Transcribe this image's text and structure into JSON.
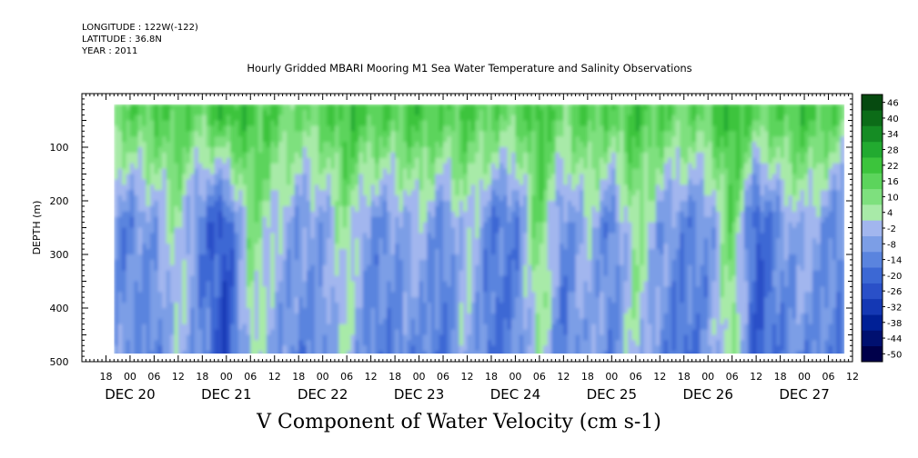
{
  "header": {
    "longitude": "LONGITUDE : 122W(-122)",
    "latitude": "LATITUDE : 36.8N",
    "year": "YEAR : 2011",
    "title": "Hourly Gridded MBARI Mooring M1 Sea Water Temperature and Salinity Observations"
  },
  "caption": "V Component of Water Velocity (cm s-1)",
  "chart_data": {
    "type": "heatmap",
    "title": "Hourly Gridded MBARI Mooring M1 Sea Water Temperature and Salinity Observations",
    "variable": "V Component of Water Velocity (cm s-1)",
    "xlabel": "",
    "ylabel": "DEPTH (m)",
    "x_range_hours": [
      -12,
      180
    ],
    "x_start_label": "DEC 20 00",
    "data_x_range_hours": [
      -4,
      178
    ],
    "y_range": [
      500,
      0
    ],
    "data_y_range": [
      20,
      485
    ],
    "y_ticks": [
      100,
      200,
      300,
      400,
      500
    ],
    "x_tick_labels": [
      "18",
      "00",
      "06",
      "12",
      "18",
      "00",
      "06",
      "12",
      "18",
      "00",
      "06",
      "12",
      "18",
      "00",
      "06",
      "12",
      "18",
      "00",
      "06",
      "12",
      "18",
      "00",
      "06",
      "12",
      "18",
      "00",
      "06",
      "12",
      "18",
      "00",
      "06",
      "12"
    ],
    "x_tick_hours": [
      -6,
      0,
      6,
      12,
      18,
      24,
      30,
      36,
      42,
      48,
      54,
      60,
      66,
      72,
      78,
      84,
      90,
      96,
      102,
      108,
      114,
      120,
      126,
      132,
      138,
      144,
      150,
      156,
      162,
      168,
      174,
      180
    ],
    "date_labels": [
      {
        "label": "DEC 20",
        "hour": 0
      },
      {
        "label": "DEC 21",
        "hour": 24
      },
      {
        "label": "DEC 22",
        "hour": 48
      },
      {
        "label": "DEC 23",
        "hour": 72
      },
      {
        "label": "DEC 24",
        "hour": 96
      },
      {
        "label": "DEC 25",
        "hour": 120
      },
      {
        "label": "DEC 26",
        "hour": 144
      },
      {
        "label": "DEC 27",
        "hour": 168
      }
    ],
    "colorbar": {
      "levels": [
        -50,
        -44,
        -38,
        -32,
        -26,
        -20,
        -14,
        -8,
        -2,
        4,
        10,
        16,
        22,
        28,
        34,
        40,
        46
      ],
      "labels": [
        "46",
        "40",
        "34",
        "28",
        "22",
        "16",
        "10",
        "4",
        "-2",
        "-8",
        "-14",
        "-20",
        "-26",
        "-32",
        "-38",
        "-44",
        "-50"
      ],
      "colors": [
        "#00004a",
        "#001070",
        "#002096",
        "#1438b4",
        "#2a50c8",
        "#3c68d4",
        "#5a84de",
        "#7c9ee6",
        "#a2b6ee",
        "#a8eaa8",
        "#7ee07e",
        "#5cd45c",
        "#3cc43c",
        "#22aa30",
        "#158c24",
        "#0c6c18",
        "#064a10"
      ]
    },
    "velocity_profile_by_hour": [
      {
        "hour": 0,
        "v_upper": 18,
        "v_mid": -10,
        "v_deep": -6
      },
      {
        "hour": 6,
        "v_upper": 20,
        "v_mid": -4,
        "v_deep": -12
      },
      {
        "hour": 12,
        "v_upper": 22,
        "v_mid": 8,
        "v_deep": 2
      },
      {
        "hour": 18,
        "v_upper": 16,
        "v_mid": -14,
        "v_deep": -8
      },
      {
        "hour": 24,
        "v_upper": 28,
        "v_mid": -22,
        "v_deep": -26
      },
      {
        "hour": 30,
        "v_upper": 24,
        "v_mid": 14,
        "v_deep": 6
      },
      {
        "hour": 36,
        "v_upper": 20,
        "v_mid": 4,
        "v_deep": -4
      },
      {
        "hour": 42,
        "v_upper": 14,
        "v_mid": -6,
        "v_deep": -10
      },
      {
        "hour": 48,
        "v_upper": 18,
        "v_mid": -4,
        "v_deep": -8
      },
      {
        "hour": 54,
        "v_upper": 26,
        "v_mid": 10,
        "v_deep": 4
      },
      {
        "hour": 60,
        "v_upper": 22,
        "v_mid": -8,
        "v_deep": -12
      },
      {
        "hour": 66,
        "v_upper": 20,
        "v_mid": -6,
        "v_deep": -10
      },
      {
        "hour": 72,
        "v_upper": 24,
        "v_mid": 2,
        "v_deep": -8
      },
      {
        "hour": 78,
        "v_upper": 20,
        "v_mid": -10,
        "v_deep": -14
      },
      {
        "hour": 84,
        "v_upper": 22,
        "v_mid": 6,
        "v_deep": 2
      },
      {
        "hour": 90,
        "v_upper": 18,
        "v_mid": -12,
        "v_deep": -16
      },
      {
        "hour": 96,
        "v_upper": 16,
        "v_mid": -14,
        "v_deep": -10
      },
      {
        "hour": 102,
        "v_upper": 26,
        "v_mid": 18,
        "v_deep": 8
      },
      {
        "hour": 108,
        "v_upper": 14,
        "v_mid": -10,
        "v_deep": -14
      },
      {
        "hour": 114,
        "v_upper": 22,
        "v_mid": 2,
        "v_deep": -2
      },
      {
        "hour": 120,
        "v_upper": 18,
        "v_mid": -12,
        "v_deep": -10
      },
      {
        "hour": 126,
        "v_upper": 24,
        "v_mid": 12,
        "v_deep": 6
      },
      {
        "hour": 132,
        "v_upper": 20,
        "v_mid": -4,
        "v_deep": -8
      },
      {
        "hour": 138,
        "v_upper": 16,
        "v_mid": -10,
        "v_deep": -16
      },
      {
        "hour": 144,
        "v_upper": 18,
        "v_mid": -8,
        "v_deep": -6
      },
      {
        "hour": 150,
        "v_upper": 30,
        "v_mid": 18,
        "v_deep": 10
      },
      {
        "hour": 156,
        "v_upper": 18,
        "v_mid": -22,
        "v_deep": -20
      },
      {
        "hour": 162,
        "v_upper": 20,
        "v_mid": -6,
        "v_deep": -12
      },
      {
        "hour": 168,
        "v_upper": 24,
        "v_mid": 2,
        "v_deep": -8
      },
      {
        "hour": 174,
        "v_upper": 20,
        "v_mid": -8,
        "v_deep": -10
      },
      {
        "hour": 178,
        "v_upper": 16,
        "v_mid": -12,
        "v_deep": -12
      }
    ],
    "grid": false
  }
}
